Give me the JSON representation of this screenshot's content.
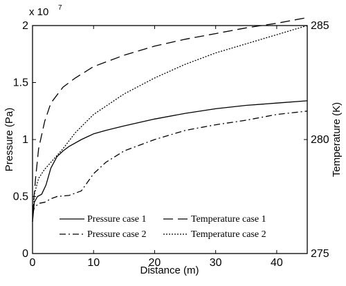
{
  "chart_data": {
    "type": "line",
    "title": "",
    "xlabel": "Distance (m)",
    "ylabel": "Pressure (Pa)",
    "y2label": "Temperature (K)",
    "y_exponent_base": "x 10",
    "y_exponent_power": "7",
    "xlim": [
      0,
      45
    ],
    "ylim": [
      0,
      2
    ],
    "y2lim": [
      275,
      285
    ],
    "xticks": [
      "0",
      "10",
      "20",
      "30",
      "40"
    ],
    "yticks": [
      "0",
      "0.5",
      "1",
      "1.5",
      "2"
    ],
    "y2ticks": [
      "275",
      "280",
      "285"
    ],
    "grid": false,
    "legend_position": "bottom-right",
    "series": [
      {
        "name": "Pressure case 1",
        "axis": "left",
        "color": "#000000",
        "dash": "solid",
        "x": [
          0,
          0.3,
          0.8,
          1.5,
          2.2,
          3,
          4,
          5,
          6,
          8,
          10,
          12,
          15,
          20,
          25,
          30,
          35,
          40,
          45
        ],
        "y": [
          0.28,
          0.45,
          0.5,
          0.52,
          0.6,
          0.75,
          0.85,
          0.9,
          0.94,
          1.0,
          1.05,
          1.08,
          1.12,
          1.18,
          1.23,
          1.27,
          1.3,
          1.32,
          1.34
        ]
      },
      {
        "name": "Temperature case 1",
        "axis": "right",
        "color": "#000000",
        "dash": "long-dash",
        "x": [
          0,
          0.5,
          1,
          2,
          3,
          5,
          7,
          10,
          15,
          20,
          25,
          30,
          35,
          40,
          45
        ],
        "y": [
          276.7,
          278.3,
          279.6,
          280.8,
          281.6,
          282.3,
          282.7,
          283.2,
          283.7,
          284.1,
          284.4,
          284.65,
          284.9,
          285.1,
          285.35
        ]
      },
      {
        "name": "Pressure case 2",
        "axis": "left",
        "color": "#000000",
        "dash": "dash-dot",
        "x": [
          0,
          0.3,
          1,
          2,
          3,
          4,
          6,
          8,
          10,
          12,
          15,
          20,
          25,
          30,
          35,
          40,
          45
        ],
        "y": [
          0.35,
          0.4,
          0.44,
          0.45,
          0.48,
          0.5,
          0.51,
          0.55,
          0.7,
          0.8,
          0.9,
          1.0,
          1.08,
          1.13,
          1.17,
          1.22,
          1.25
        ]
      },
      {
        "name": "Temperature case 2",
        "axis": "right",
        "color": "#000000",
        "dash": "dotted",
        "x": [
          0,
          0.3,
          1,
          2,
          3,
          5,
          7,
          10,
          15,
          20,
          25,
          30,
          35,
          40,
          45
        ],
        "y": [
          276.4,
          277.6,
          278.3,
          278.7,
          279.0,
          279.6,
          280.3,
          281.1,
          282.0,
          282.7,
          283.3,
          283.8,
          284.2,
          284.6,
          285.0
        ]
      }
    ]
  }
}
